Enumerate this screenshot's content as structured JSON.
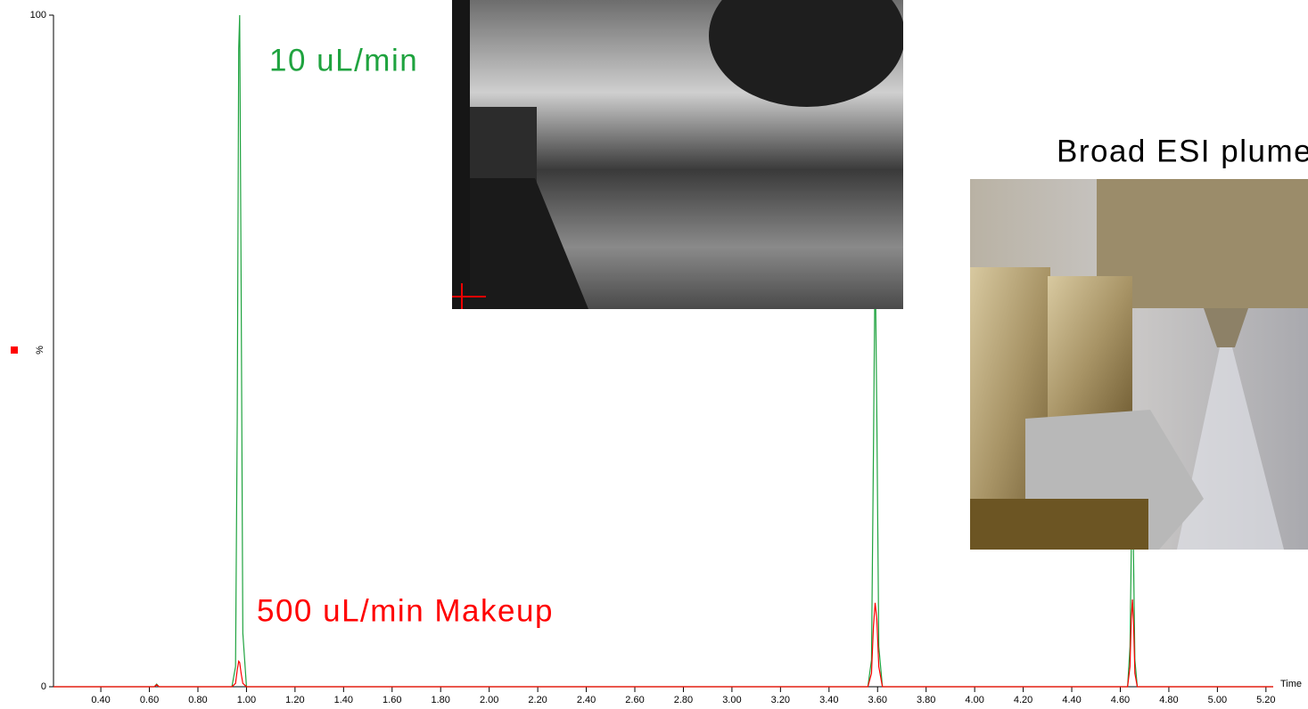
{
  "chart_data": {
    "type": "line",
    "x_label": "Time",
    "y_label": "%",
    "x": [
      0.205,
      0.62,
      0.63,
      0.64,
      0.94,
      0.955,
      0.962,
      0.968,
      0.972,
      0.978,
      0.985,
      1.0,
      3.56,
      3.575,
      3.583,
      3.59,
      3.597,
      3.605,
      3.62,
      4.63,
      4.64,
      4.645,
      4.65,
      4.655,
      4.66,
      4.67,
      5.23
    ],
    "series": [
      {
        "name": "10 uL/min",
        "color": "#1fa33f",
        "values": [
          0,
          0,
          0.4,
          0,
          0,
          3,
          40,
          95,
          100,
          60,
          8,
          0,
          0,
          4,
          35,
          65,
          40,
          6,
          0,
          0,
          6,
          20,
          30,
          18,
          4,
          0,
          0
        ]
      },
      {
        "name": "500 uL/min Makeup",
        "color": "#ff0000",
        "values": [
          0,
          0,
          0.3,
          0,
          0,
          0.5,
          2.5,
          3.8,
          3.6,
          2,
          0.5,
          0,
          0,
          2,
          9,
          12.5,
          10,
          3,
          0,
          0,
          3,
          10,
          13,
          9,
          2,
          0,
          0
        ]
      }
    ],
    "annotations": [
      {
        "text": "Broad ESI plume",
        "color": "#000000"
      }
    ],
    "xlim": [
      0.205,
      5.23
    ],
    "ylim": [
      0,
      100
    ],
    "yticks": [
      0,
      100
    ],
    "xticks": [
      {
        "value": 0.4,
        "label": "0.40"
      },
      {
        "value": 0.6,
        "label": "0.60"
      },
      {
        "value": 0.8,
        "label": "0.80"
      },
      {
        "value": 1.0,
        "label": "1.00"
      },
      {
        "value": 1.2,
        "label": "1.20"
      },
      {
        "value": 1.4,
        "label": "1.40"
      },
      {
        "value": 1.6,
        "label": "1.60"
      },
      {
        "value": 1.8,
        "label": "1.80"
      },
      {
        "value": 2.0,
        "label": "2.00"
      },
      {
        "value": 2.2,
        "label": "2.20"
      },
      {
        "value": 2.4,
        "label": "2.40"
      },
      {
        "value": 2.6,
        "label": "2.60"
      },
      {
        "value": 2.8,
        "label": "2.80"
      },
      {
        "value": 3.0,
        "label": "3.00"
      },
      {
        "value": 3.2,
        "label": "3.20"
      },
      {
        "value": 3.4,
        "label": "3.40"
      },
      {
        "value": 3.6,
        "label": "3.60"
      },
      {
        "value": 3.8,
        "label": "3.80"
      },
      {
        "value": 4.0,
        "label": "4.00"
      },
      {
        "value": 4.2,
        "label": "4.20"
      },
      {
        "value": 4.4,
        "label": "4.40"
      },
      {
        "value": 4.6,
        "label": "4.60"
      },
      {
        "value": 4.8,
        "label": "4.80"
      },
      {
        "value": 5.0,
        "label": "5.00"
      },
      {
        "value": 5.2,
        "label": "5.20"
      }
    ],
    "legend_marker_color": "#ff0000"
  }
}
